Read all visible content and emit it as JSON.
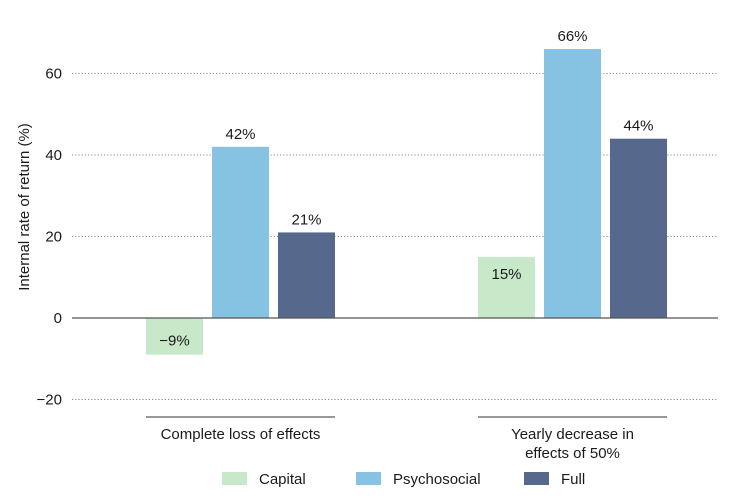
{
  "chart_data": {
    "type": "bar",
    "title": "",
    "xlabel": "",
    "ylabel": "Internal rate of return (%)",
    "ylim": [
      -20,
      66
    ],
    "yticks": [
      -20,
      0,
      20,
      40,
      60
    ],
    "ytick_labels": [
      "−20",
      "0",
      "20",
      "40",
      "60"
    ],
    "grid": "dotted horizontal",
    "categories": [
      {
        "lines": [
          "Complete loss of effects"
        ]
      },
      {
        "lines": [
          "Yearly decrease in",
          "effects of 50%"
        ]
      }
    ],
    "series": [
      {
        "name": "Capital",
        "color": "#c7e8c9",
        "values": [
          -9,
          15
        ],
        "labels": [
          "−9%",
          "15%"
        ]
      },
      {
        "name": "Psychosocial",
        "color": "#86c3e2",
        "values": [
          42,
          66
        ],
        "labels": [
          "42%",
          "66%"
        ]
      },
      {
        "name": "Full",
        "color": "#56688c",
        "values": [
          21,
          44
        ],
        "labels": [
          "21%",
          "44%"
        ]
      }
    ],
    "legend": {
      "placement": "bottom-center"
    }
  }
}
